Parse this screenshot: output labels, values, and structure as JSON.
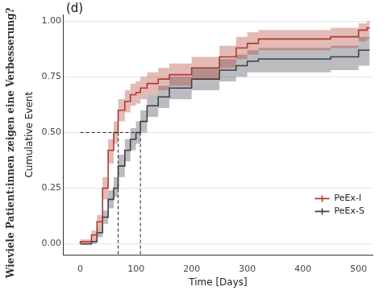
{
  "chart_data": {
    "type": "line",
    "title": "(d)",
    "outer_label": "Wieviele Patient:innen zeigen eine Verbesserung?",
    "x_label": "Time [Days]",
    "y_label": "Cumulative Event",
    "x": [
      0,
      20,
      30,
      40,
      50,
      60,
      68,
      80,
      90,
      100,
      108,
      120,
      140,
      160,
      200,
      250,
      280,
      300,
      320,
      400,
      450,
      500,
      515,
      520
    ],
    "series": [
      {
        "name": "PeEx-I",
        "color": "#b03a2e",
        "values": [
          0,
          0.01,
          0.04,
          0.1,
          0.25,
          0.42,
          0.5,
          0.6,
          0.64,
          0.67,
          0.68,
          0.7,
          0.72,
          0.74,
          0.76,
          0.79,
          0.84,
          0.88,
          0.9,
          0.92,
          0.92,
          0.93,
          0.96,
          0.97
        ],
        "lower": [
          0,
          0,
          0.02,
          0.07,
          0.2,
          0.36,
          0.45,
          0.55,
          0.59,
          0.62,
          0.63,
          0.65,
          0.67,
          0.69,
          0.71,
          0.74,
          0.79,
          0.83,
          0.85,
          0.87,
          0.87,
          0.88,
          0.91,
          0.92
        ],
        "upper": [
          0,
          0.02,
          0.06,
          0.13,
          0.3,
          0.47,
          0.55,
          0.65,
          0.69,
          0.72,
          0.73,
          0.75,
          0.77,
          0.79,
          0.81,
          0.84,
          0.89,
          0.93,
          0.95,
          0.96,
          0.96,
          0.97,
          0.99,
          1.0
        ],
        "median": 68
      },
      {
        "name": "PeEx-S",
        "color": "#3b3f4a",
        "values": [
          0,
          0,
          0.01,
          0.05,
          0.12,
          0.2,
          0.25,
          0.35,
          0.42,
          0.47,
          0.5,
          0.55,
          0.62,
          0.66,
          0.7,
          0.74,
          0.78,
          0.8,
          0.82,
          0.83,
          0.83,
          0.84,
          0.87,
          0.87
        ],
        "lower": [
          0,
          0,
          0,
          0.03,
          0.09,
          0.16,
          0.21,
          0.3,
          0.37,
          0.42,
          0.45,
          0.5,
          0.57,
          0.61,
          0.65,
          0.69,
          0.73,
          0.75,
          0.77,
          0.77,
          0.77,
          0.78,
          0.8,
          0.8
        ],
        "upper": [
          0,
          0,
          0.02,
          0.07,
          0.15,
          0.24,
          0.3,
          0.4,
          0.47,
          0.52,
          0.55,
          0.6,
          0.67,
          0.71,
          0.75,
          0.79,
          0.83,
          0.85,
          0.87,
          0.88,
          0.88,
          0.89,
          0.93,
          0.93
        ],
        "median": 108
      }
    ],
    "median_level": 0.5,
    "xlim": [
      -30,
      525
    ],
    "xticks": [
      0,
      100,
      200,
      300,
      400,
      500
    ],
    "ylim": [
      -0.05,
      1.03
    ],
    "yticks": [
      {
        "value": 0,
        "label": "0.00"
      },
      {
        "value": 0.25,
        "label": "0.25"
      },
      {
        "value": 0.5,
        "label": "0.50"
      },
      {
        "value": 0.75,
        "label": "0.75"
      },
      {
        "value": 1,
        "label": "1.00"
      }
    ],
    "grid": true,
    "legend": "lower right",
    "line_style": "step"
  }
}
